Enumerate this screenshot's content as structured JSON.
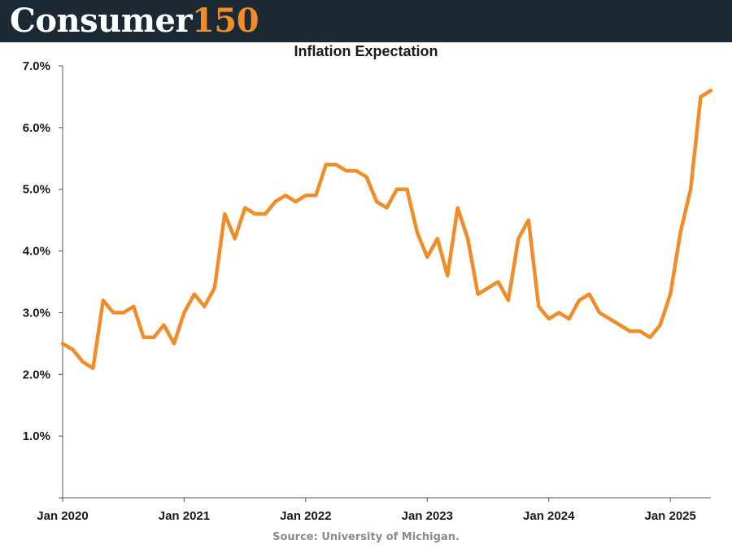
{
  "header": {
    "logo_word": "Consumer",
    "logo_number": "150",
    "background": "#1b2a35",
    "accent": "#f28c28"
  },
  "chart_data": {
    "type": "line",
    "title": "Inflation Expectation",
    "xlabel": "",
    "ylabel": "",
    "x_start": "2020-01",
    "x_end": "2025-05",
    "xticks": [
      "Jan 2020",
      "Jan 2021",
      "Jan 2022",
      "Jan 2023",
      "Jan 2024",
      "Jan 2025"
    ],
    "yticks": [
      "1.0%",
      "2.0%",
      "3.0%",
      "4.0%",
      "5.0%",
      "6.0%",
      "7.0%"
    ],
    "ylim": [
      0,
      7
    ],
    "grid": false,
    "series": [
      {
        "color": "#f28c28",
        "points": [
          {
            "x": "2020-01",
            "y": 2.5
          },
          {
            "x": "2020-02",
            "y": 2.4
          },
          {
            "x": "2020-03",
            "y": 2.2
          },
          {
            "x": "2020-04",
            "y": 2.1
          },
          {
            "x": "2020-05",
            "y": 3.2
          },
          {
            "x": "2020-06",
            "y": 3.0
          },
          {
            "x": "2020-07",
            "y": 3.0
          },
          {
            "x": "2020-08",
            "y": 3.1
          },
          {
            "x": "2020-09",
            "y": 2.6
          },
          {
            "x": "2020-10",
            "y": 2.6
          },
          {
            "x": "2020-11",
            "y": 2.8
          },
          {
            "x": "2020-12",
            "y": 2.5
          },
          {
            "x": "2021-01",
            "y": 3.0
          },
          {
            "x": "2021-02",
            "y": 3.3
          },
          {
            "x": "2021-03",
            "y": 3.1
          },
          {
            "x": "2021-04",
            "y": 3.4
          },
          {
            "x": "2021-05",
            "y": 4.6
          },
          {
            "x": "2021-06",
            "y": 4.2
          },
          {
            "x": "2021-07",
            "y": 4.7
          },
          {
            "x": "2021-08",
            "y": 4.6
          },
          {
            "x": "2021-09",
            "y": 4.6
          },
          {
            "x": "2021-10",
            "y": 4.8
          },
          {
            "x": "2021-11",
            "y": 4.9
          },
          {
            "x": "2021-12",
            "y": 4.8
          },
          {
            "x": "2022-01",
            "y": 4.9
          },
          {
            "x": "2022-02",
            "y": 4.9
          },
          {
            "x": "2022-03",
            "y": 5.4
          },
          {
            "x": "2022-04",
            "y": 5.4
          },
          {
            "x": "2022-05",
            "y": 5.3
          },
          {
            "x": "2022-06",
            "y": 5.3
          },
          {
            "x": "2022-07",
            "y": 5.2
          },
          {
            "x": "2022-08",
            "y": 4.8
          },
          {
            "x": "2022-09",
            "y": 4.7
          },
          {
            "x": "2022-10",
            "y": 5.0
          },
          {
            "x": "2022-11",
            "y": 5.0
          },
          {
            "x": "2022-12",
            "y": 4.3
          },
          {
            "x": "2023-01",
            "y": 3.9
          },
          {
            "x": "2023-02",
            "y": 4.2
          },
          {
            "x": "2023-03",
            "y": 3.6
          },
          {
            "x": "2023-04",
            "y": 4.7
          },
          {
            "x": "2023-05",
            "y": 4.2
          },
          {
            "x": "2023-06",
            "y": 3.3
          },
          {
            "x": "2023-07",
            "y": 3.4
          },
          {
            "x": "2023-08",
            "y": 3.5
          },
          {
            "x": "2023-09",
            "y": 3.2
          },
          {
            "x": "2023-10",
            "y": 4.2
          },
          {
            "x": "2023-11",
            "y": 4.5
          },
          {
            "x": "2023-12",
            "y": 3.1
          },
          {
            "x": "2024-01",
            "y": 2.9
          },
          {
            "x": "2024-02",
            "y": 3.0
          },
          {
            "x": "2024-03",
            "y": 2.9
          },
          {
            "x": "2024-04",
            "y": 3.2
          },
          {
            "x": "2024-05",
            "y": 3.3
          },
          {
            "x": "2024-06",
            "y": 3.0
          },
          {
            "x": "2024-07",
            "y": 2.9
          },
          {
            "x": "2024-08",
            "y": 2.8
          },
          {
            "x": "2024-09",
            "y": 2.7
          },
          {
            "x": "2024-10",
            "y": 2.7
          },
          {
            "x": "2024-11",
            "y": 2.6
          },
          {
            "x": "2024-12",
            "y": 2.8
          },
          {
            "x": "2025-01",
            "y": 3.3
          },
          {
            "x": "2025-02",
            "y": 4.3
          },
          {
            "x": "2025-03",
            "y": 5.0
          },
          {
            "x": "2025-04",
            "y": 6.5
          },
          {
            "x": "2025-05",
            "y": 6.6
          }
        ]
      }
    ]
  },
  "footer": {
    "source": "Source: University of Michigan."
  }
}
